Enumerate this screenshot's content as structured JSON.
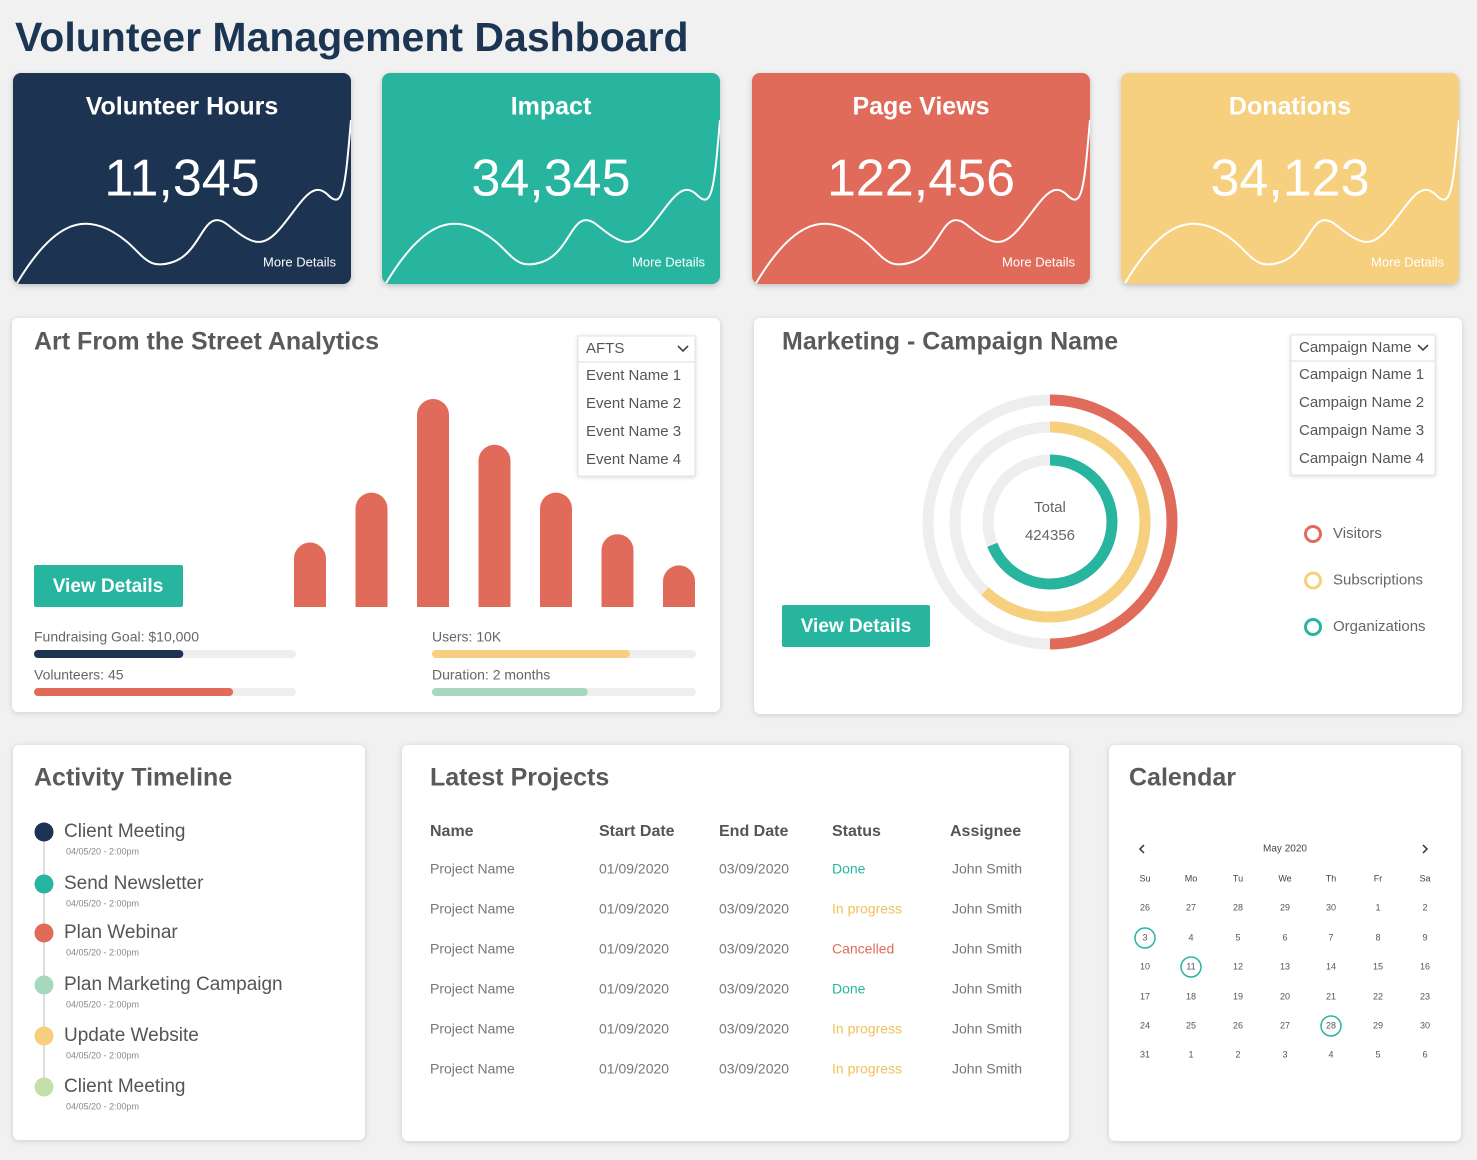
{
  "header": {
    "title": "Volunteer Management Dashboard"
  },
  "kpis": [
    {
      "title": "Volunteer Hours",
      "value": "11,345",
      "link": "More Details",
      "color": "#1d3352"
    },
    {
      "title": "Impact",
      "value": "34,345",
      "link": "More Details",
      "color": "#27b5a0"
    },
    {
      "title": "Page Views",
      "value": "122,456",
      "link": "More Details",
      "color": "#e06b5b"
    },
    {
      "title": "Donations",
      "value": "34,123",
      "link": "More Details",
      "color": "#f6d07e"
    }
  ],
  "analytics": {
    "title": "Art From the Street Analytics",
    "dropdown": {
      "selected": "AFTS",
      "options": [
        "Event Name 1",
        "Event Name 2",
        "Event Name 3",
        "Event Name 4"
      ]
    },
    "chart": {
      "type": "bar",
      "values": [
        31,
        55,
        100,
        78,
        55,
        35,
        20
      ],
      "color": "#e06b5b"
    },
    "button": "View Details",
    "progress": [
      {
        "label": "Fundraising Goal: $10,000",
        "value": 57,
        "color": "#1d3352"
      },
      {
        "label": "Volunteers: 45",
        "value": 76,
        "color": "#e06b5b"
      },
      {
        "label": "Users: 10K",
        "value": 75,
        "color": "#f6d07e"
      },
      {
        "label": "Duration: 2 months",
        "value": 59,
        "color": "#a7d7bd"
      }
    ]
  },
  "marketing": {
    "title": "Marketing - Campaign Name",
    "dropdown": {
      "selected": "Campaign Name",
      "options": [
        "Campaign Name 1",
        "Campaign Name 2",
        "Campaign Name 3",
        "Campaign Name 4"
      ]
    },
    "chart": {
      "type": "donut",
      "total_label": "Total",
      "total": 424356,
      "series": [
        {
          "name": "Visitors",
          "color": "#e06b5b",
          "value": 50
        },
        {
          "name": "Subscriptions",
          "color": "#f6d07e",
          "value": 62
        },
        {
          "name": "Organizations",
          "color": "#27b5a0",
          "value": 69
        }
      ]
    },
    "button": "View Details"
  },
  "timeline": {
    "title": "Activity Timeline",
    "items": [
      {
        "label": "Client Meeting",
        "date": "04/05/20 - 2:00pm",
        "color": "#1d3352"
      },
      {
        "label": "Send Newsletter",
        "date": "04/05/20 - 2:00pm",
        "color": "#27b5a0"
      },
      {
        "label": "Plan Webinar",
        "date": "04/05/20 - 2:00pm",
        "color": "#e06b5b"
      },
      {
        "label": "Plan Marketing Campaign",
        "date": "04/05/20 - 2:00pm",
        "color": "#a7d7bd"
      },
      {
        "label": "Update Website",
        "date": "04/05/20 - 2:00pm",
        "color": "#f6d07e"
      },
      {
        "label": "Client Meeting",
        "date": "04/05/20 - 2:00pm",
        "color": "#c5dfa8"
      }
    ]
  },
  "projects": {
    "title": "Latest Projects",
    "headers": [
      "Name",
      "Start Date",
      "End Date",
      "Status",
      "Assignee"
    ],
    "rows": [
      {
        "cells": [
          "Project Name",
          "01/09/2020",
          "03/09/2020",
          "Done",
          "John Smith"
        ],
        "status_color": "#27b5a0"
      },
      {
        "cells": [
          "Project Name",
          "01/09/2020",
          "03/09/2020",
          "In progress",
          "John Smith"
        ],
        "status_color": "#f0c15a"
      },
      {
        "cells": [
          "Project Name",
          "01/09/2020",
          "03/09/2020",
          "Cancelled",
          "John Smith"
        ],
        "status_color": "#e06b5b"
      },
      {
        "cells": [
          "Project Name",
          "01/09/2020",
          "03/09/2020",
          "Done",
          "John Smith"
        ],
        "status_color": "#27b5a0"
      },
      {
        "cells": [
          "Project Name",
          "01/09/2020",
          "03/09/2020",
          "In progress",
          "John Smith"
        ],
        "status_color": "#f0c15a"
      },
      {
        "cells": [
          "Project Name",
          "01/09/2020",
          "03/09/2020",
          "In progress",
          "John Smith"
        ],
        "status_color": "#f0c15a"
      }
    ]
  },
  "calendar": {
    "title": "Calendar",
    "month": "May 2020",
    "weekdays": [
      "Su",
      "Mo",
      "Tu",
      "We",
      "Th",
      "Fr",
      "Sa"
    ],
    "weeks": [
      [
        "26",
        "27",
        "28",
        "29",
        "30",
        "1",
        "2"
      ],
      [
        {
          "text": "3",
          "marked": true
        },
        "4",
        "5",
        "6",
        "7",
        "8",
        "9"
      ],
      [
        "10",
        {
          "text": "11",
          "marked": true
        },
        "12",
        "13",
        "14",
        "15",
        "16"
      ],
      [
        "17",
        "18",
        "19",
        "20",
        "21",
        "22",
        "23"
      ],
      [
        "24",
        "25",
        "26",
        "27",
        {
          "text": "28",
          "marked": true
        },
        "29",
        "30"
      ],
      [
        "31",
        "1",
        "2",
        "3",
        "4",
        "5",
        "6"
      ]
    ]
  }
}
